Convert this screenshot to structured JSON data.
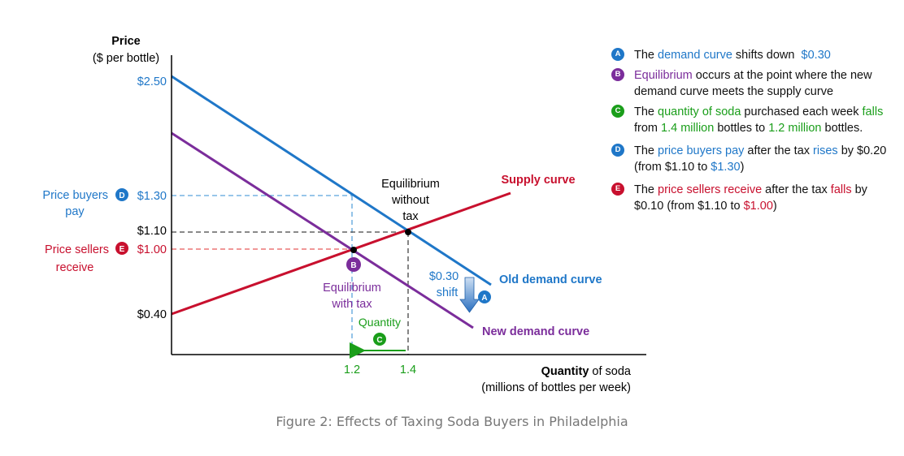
{
  "colors": {
    "blue": "#1f77c8",
    "purple": "#7b2d9b",
    "red": "#c8102e",
    "green": "#1a9e1a",
    "axis": "#000000",
    "caption": "#777777"
  },
  "chart_data": {
    "type": "line",
    "title": "",
    "ylabel_line1": "Price",
    "ylabel_line2": "($ per bottle)",
    "xlabel_bold": "Quantity",
    "xlabel_rest": " of soda",
    "xlabel_line2": "(millions of bottles per week)",
    "y_ticks": [
      {
        "value": 2.5,
        "label": "$2.50",
        "color": "#1f77c8"
      },
      {
        "value": 1.3,
        "label": "$1.30",
        "color": "#1f77c8"
      },
      {
        "value": 1.1,
        "label": "$1.10",
        "color": "#000000"
      },
      {
        "value": 1.0,
        "label": "$1.00",
        "color": "#c8102e"
      },
      {
        "value": 0.4,
        "label": "$0.40",
        "color": "#000000"
      }
    ],
    "x_ticks": [
      {
        "value": 1.2,
        "label": "1.2"
      },
      {
        "value": 1.4,
        "label": "1.4"
      }
    ],
    "series": [
      {
        "name": "Supply curve",
        "color": "#c8102e",
        "points": [
          [
            0,
            0.4
          ],
          [
            2.43,
            1.51
          ]
        ]
      },
      {
        "name": "Old demand curve",
        "color": "#1f77c8",
        "points": [
          [
            0,
            2.5
          ],
          [
            2.29,
            0.69
          ]
        ]
      },
      {
        "name": "New demand curve",
        "color": "#7b2d9b",
        "points": [
          [
            0,
            2.2
          ],
          [
            2.16,
            0.49
          ]
        ]
      }
    ],
    "equilibria": [
      {
        "name": "Equilibrium without tax",
        "x": 1.4,
        "y": 1.1
      },
      {
        "name": "Equilibrium with tax",
        "x": 1.2,
        "y": 1.0
      }
    ],
    "left_labels": {
      "buyers_line1": "Price buyers",
      "buyers_line2": "pay",
      "buyers_badge": "D",
      "sellers_line1": "Price sellers",
      "sellers_line2": "receive",
      "sellers_badge": "E"
    },
    "annotations": {
      "eq_without_l1": "Equilibrium",
      "eq_without_l2": "without",
      "eq_without_l3": "tax",
      "eq_with_l1": "Equilibrium",
      "eq_with_l2": "with tax",
      "eq_with_badge": "B",
      "shift_l1": "$0.30",
      "shift_l2": "shift",
      "shift_badge": "A",
      "quantity_label": "Quantity",
      "quantity_badge": "C",
      "supply_label": "Supply curve",
      "old_demand_label": "Old demand curve",
      "new_demand_label": "New demand curve"
    }
  },
  "notes": {
    "a": {
      "badge": "A",
      "color": "#1f77c8",
      "t1": "The ",
      "h1": "demand curve",
      "t2": " shifts down  ",
      "h2": "$0.30"
    },
    "b": {
      "badge": "B",
      "color": "#7b2d9b",
      "h1": "Equilibrium",
      "t1": " occurs at the point where the new demand curve meets the supply curve"
    },
    "c": {
      "badge": "C",
      "color": "#1a9e1a",
      "t1": "The ",
      "h1": "quantity of soda",
      "t2": " purchased each week ",
      "h2": "falls",
      "t3": " from ",
      "h3": "1.4 million",
      "t4": " bottles to ",
      "h4": "1.2 million",
      "t5": " bottles."
    },
    "d": {
      "badge": "D",
      "color": "#1f77c8",
      "t1": "The ",
      "h1": "price buyers pay",
      "t2": " after the tax ",
      "h2": "rises",
      "t3": " by $0.20 (from $1.10 to ",
      "h3": "$1.30",
      "t4": ")"
    },
    "e": {
      "badge": "E",
      "color": "#c8102e",
      "t1": "The ",
      "h1": "price sellers receive",
      "t2": " after the tax ",
      "h2": "falls",
      "t3": " by $0.10 (from $1.10 to ",
      "h3": "$1.00",
      "t4": ")"
    }
  },
  "caption": "Figure 2: Effects of Taxing Soda Buyers in Philadelphia"
}
